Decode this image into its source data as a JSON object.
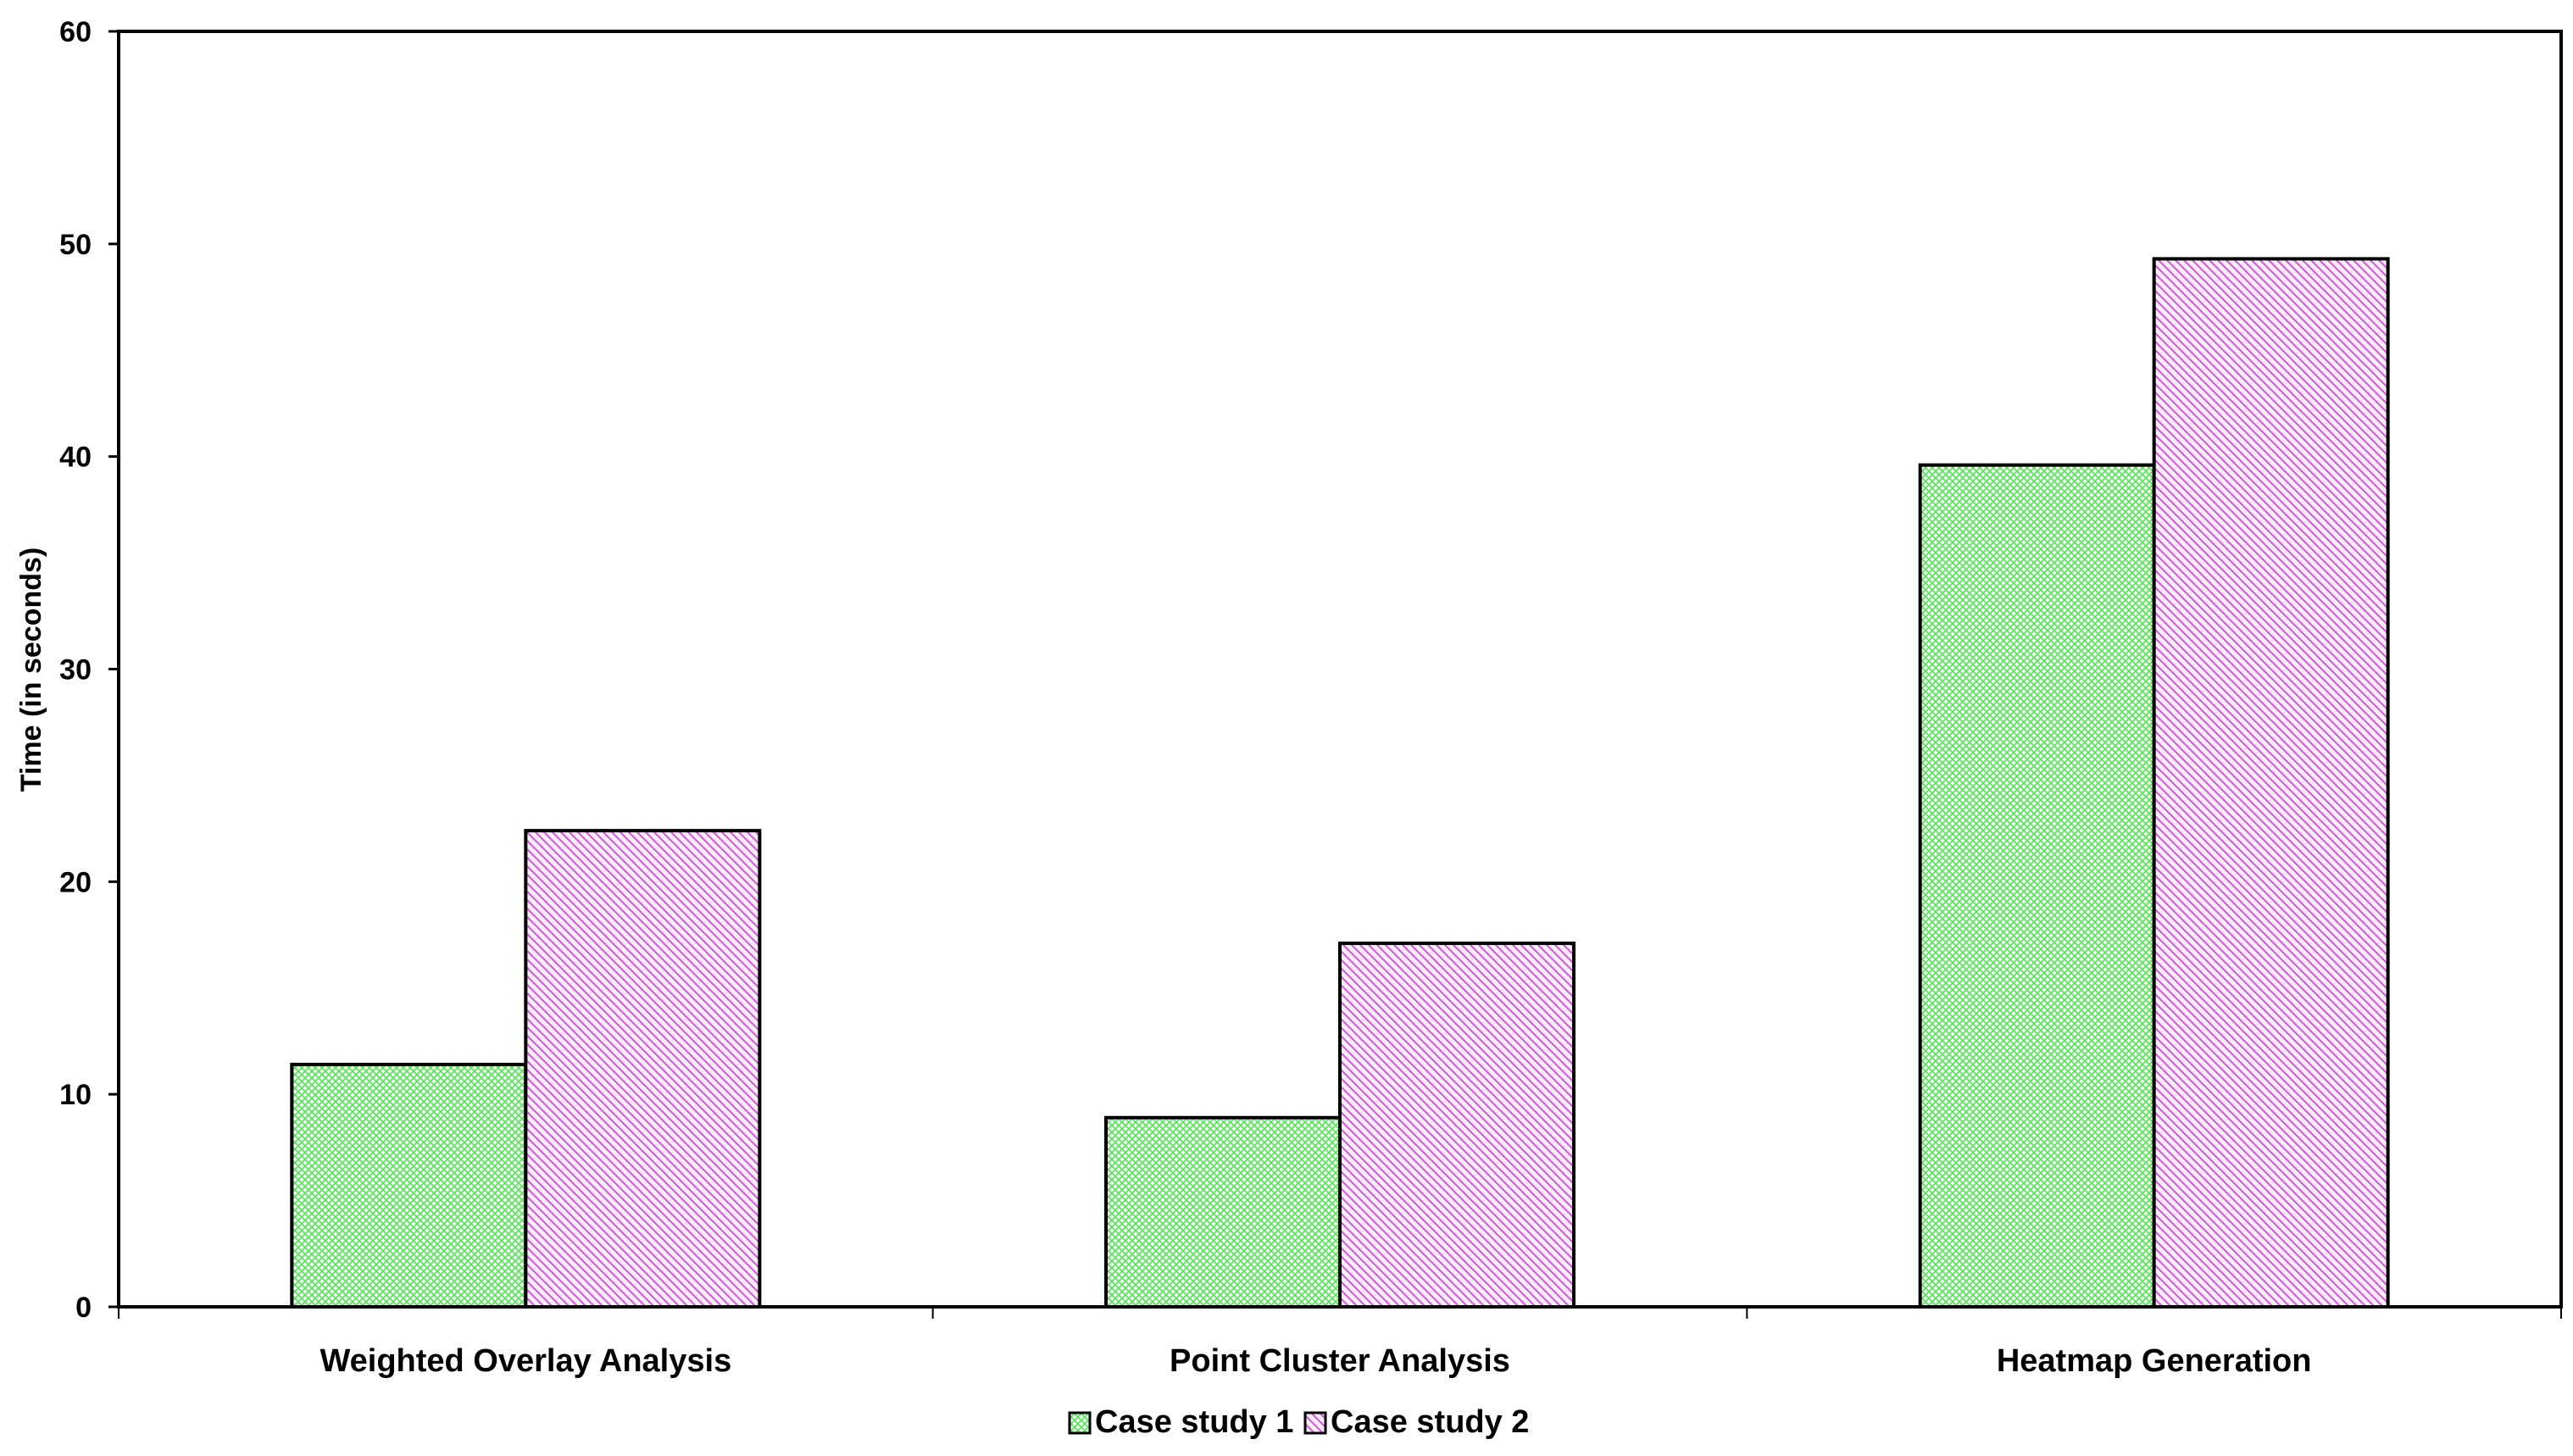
{
  "chart_data": {
    "type": "bar",
    "title": "",
    "xlabel": "",
    "ylabel": "Time (in seconds)",
    "ylim": [
      0,
      60
    ],
    "yticks": [
      "0",
      "10",
      "20",
      "30",
      "40",
      "50",
      "60"
    ],
    "categories": [
      "Weighted Overlay Analysis",
      "Point Cluster Analysis",
      "Heatmap Generation"
    ],
    "series": [
      {
        "name": "Case study 1",
        "values": [
          11.4,
          8.9,
          39.6
        ],
        "color": "#7ee87e",
        "pattern": "crosshatch"
      },
      {
        "name": "Case study 2",
        "values": [
          22.4,
          17.1,
          49.3
        ],
        "color": "#e060e8",
        "pattern": "diagonal"
      }
    ],
    "grid": false,
    "legend_position": "bottom-center"
  }
}
